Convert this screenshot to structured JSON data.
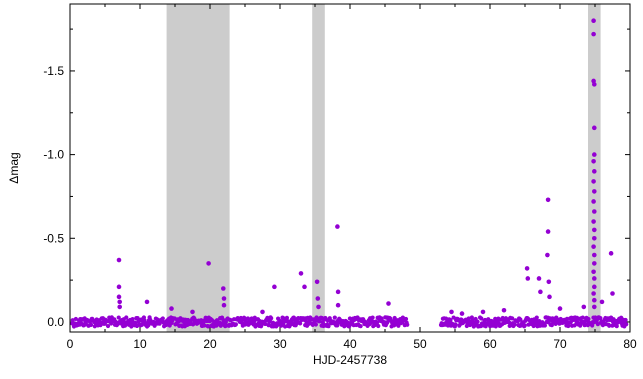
{
  "chart_data": {
    "type": "scatter",
    "xlabel": "HJD-2457738",
    "ylabel": "Δmag",
    "xlim": [
      0,
      80
    ],
    "ylim": [
      0.06,
      -1.9
    ],
    "y_inverted": true,
    "xticks": [
      0,
      10,
      20,
      30,
      40,
      50,
      60,
      70,
      80
    ],
    "xtick_labels": [
      "0",
      "10",
      "20",
      "30",
      "40",
      "50",
      "60",
      "70",
      "80"
    ],
    "yticks": [
      0.0,
      -0.5,
      -1.0,
      -1.5
    ],
    "ytick_labels": [
      "0.0",
      "-0.5",
      "-1.0",
      "-1.5"
    ],
    "shaded_x_ranges": [
      [
        13.8,
        22.8
      ],
      [
        34.6,
        36.4
      ],
      [
        74.0,
        75.8
      ]
    ],
    "series": [
      {
        "color": "#9400d3",
        "baseline_segments": [
          [
            0.3,
            48.2
          ],
          [
            53.0,
            79.5
          ]
        ],
        "baseline_level": 0.0,
        "points": [
          [
            7.0,
            -0.37
          ],
          [
            7.0,
            -0.21
          ],
          [
            7.0,
            -0.15
          ],
          [
            7.1,
            -0.12
          ],
          [
            7.1,
            -0.09
          ],
          [
            11.0,
            -0.12
          ],
          [
            14.5,
            -0.08
          ],
          [
            17.5,
            -0.06
          ],
          [
            19.8,
            -0.35
          ],
          [
            21.9,
            -0.2
          ],
          [
            22.0,
            -0.14
          ],
          [
            22.0,
            -0.1
          ],
          [
            27.5,
            -0.06
          ],
          [
            29.2,
            -0.21
          ],
          [
            33.0,
            -0.29
          ],
          [
            33.5,
            -0.21
          ],
          [
            35.3,
            -0.24
          ],
          [
            35.4,
            -0.14
          ],
          [
            35.5,
            -0.09
          ],
          [
            38.2,
            -0.57
          ],
          [
            38.3,
            -0.18
          ],
          [
            38.3,
            -0.1
          ],
          [
            45.5,
            -0.11
          ],
          [
            54.5,
            -0.06
          ],
          [
            56.0,
            -0.05
          ],
          [
            59.0,
            -0.06
          ],
          [
            62.0,
            -0.07
          ],
          [
            65.3,
            -0.32
          ],
          [
            65.4,
            -0.26
          ],
          [
            67.0,
            -0.26
          ],
          [
            67.2,
            -0.18
          ],
          [
            68.3,
            -0.73
          ],
          [
            68.3,
            -0.54
          ],
          [
            68.2,
            -0.4
          ],
          [
            68.4,
            -0.24
          ],
          [
            68.5,
            -0.15
          ],
          [
            70.0,
            -0.08
          ],
          [
            73.4,
            -0.09
          ],
          [
            74.8,
            -1.8
          ],
          [
            74.8,
            -1.72
          ],
          [
            74.8,
            -1.44
          ],
          [
            74.9,
            -1.42
          ],
          [
            74.9,
            -1.16
          ],
          [
            74.9,
            -1.0
          ],
          [
            74.8,
            -0.96
          ],
          [
            74.9,
            -0.9
          ],
          [
            74.8,
            -0.84
          ],
          [
            74.9,
            -0.78
          ],
          [
            74.8,
            -0.72
          ],
          [
            74.9,
            -0.66
          ],
          [
            74.8,
            -0.6
          ],
          [
            74.9,
            -0.55
          ],
          [
            74.9,
            -0.5
          ],
          [
            74.8,
            -0.45
          ],
          [
            74.9,
            -0.4
          ],
          [
            74.9,
            -0.35
          ],
          [
            74.8,
            -0.3
          ],
          [
            74.9,
            -0.26
          ],
          [
            74.9,
            -0.21
          ],
          [
            74.8,
            -0.17
          ],
          [
            74.9,
            -0.13
          ],
          [
            74.9,
            -0.09
          ],
          [
            76.0,
            -0.12
          ],
          [
            77.3,
            -0.41
          ],
          [
            77.5,
            -0.17
          ]
        ]
      }
    ]
  }
}
